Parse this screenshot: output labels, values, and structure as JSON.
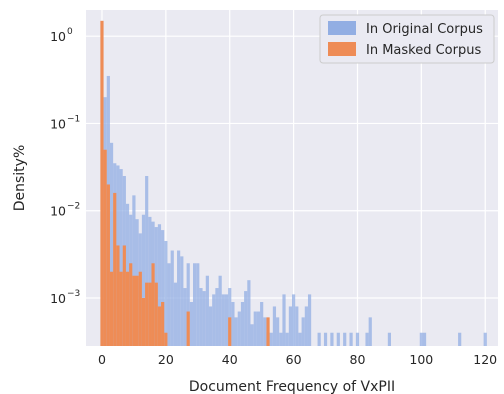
{
  "chart_data": {
    "type": "bar",
    "title": "",
    "xlabel": "Document Frequency of VxPII",
    "ylabel": "Density%",
    "xlim": [
      -5,
      124
    ],
    "ylim_log10": [
      -3.55,
      0.3
    ],
    "yscale": "log",
    "grid": true,
    "legend": "top-right",
    "xticks": [
      {
        "value": 0,
        "label": "0"
      },
      {
        "value": 20,
        "label": "20"
      },
      {
        "value": 40,
        "label": "40"
      },
      {
        "value": 60,
        "label": "60"
      },
      {
        "value": 80,
        "label": "80"
      },
      {
        "value": 100,
        "label": "100"
      },
      {
        "value": 120,
        "label": "120"
      }
    ],
    "yticks": [
      {
        "exp": 0,
        "label": "10",
        "sup": "0"
      },
      {
        "exp": -1,
        "label": "10",
        "sup": "−1"
      },
      {
        "exp": -2,
        "label": "10",
        "sup": "−2"
      },
      {
        "exp": -3,
        "label": "10",
        "sup": "−3"
      }
    ],
    "series": [
      {
        "name": "In Original Corpus",
        "color": "#92aee3",
        "x": [
          1,
          2,
          3,
          4,
          5,
          6,
          7,
          8,
          9,
          10,
          11,
          12,
          13,
          14,
          15,
          16,
          17,
          18,
          19,
          20,
          21,
          22,
          23,
          24,
          25,
          26,
          27,
          28,
          29,
          30,
          31,
          32,
          33,
          34,
          35,
          36,
          37,
          38,
          39,
          40,
          41,
          42,
          43,
          44,
          45,
          46,
          47,
          48,
          49,
          50,
          51,
          52,
          53,
          54,
          55,
          56,
          57,
          58,
          59,
          60,
          61,
          62,
          63,
          64,
          65,
          68,
          70,
          72,
          74,
          76,
          78,
          80,
          83,
          84,
          90,
          100,
          101,
          112,
          120
        ],
        "values": [
          0.2,
          0.35,
          0.06,
          0.035,
          0.033,
          0.03,
          0.025,
          0.012,
          0.009,
          0.015,
          0.008,
          0.0055,
          0.009,
          0.025,
          0.0085,
          0.0075,
          0.0065,
          0.007,
          0.006,
          0.0045,
          0.0025,
          0.0035,
          0.0015,
          0.0035,
          0.003,
          0.0013,
          0.0025,
          0.0009,
          0.0025,
          0.0025,
          0.0013,
          0.0012,
          0.0018,
          0.0008,
          0.0011,
          0.0013,
          0.0018,
          0.0011,
          0.0011,
          0.0013,
          0.0009,
          0.0006,
          0.0007,
          0.0009,
          0.0012,
          0.0016,
          0.0005,
          0.0007,
          0.0007,
          0.0009,
          0.0006,
          0.0004,
          0.0004,
          0.0008,
          0.0006,
          0.0004,
          0.0011,
          0.0004,
          0.0008,
          0.0011,
          0.0008,
          0.0004,
          0.0006,
          0.0008,
          0.0011,
          0.0004,
          0.0004,
          0.0004,
          0.0004,
          0.0004,
          0.0004,
          0.0004,
          0.0004,
          0.0006,
          0.0004,
          0.0004,
          0.0004,
          0.0004,
          0.0004
        ]
      },
      {
        "name": "In Masked Corpus",
        "color": "#ee8c56",
        "x": [
          0,
          1,
          2,
          3,
          4,
          5,
          6,
          7,
          8,
          9,
          10,
          11,
          12,
          13,
          14,
          15,
          16,
          17,
          18,
          19,
          20,
          27,
          40,
          52
        ],
        "values": [
          1.5,
          0.05,
          0.02,
          0.002,
          0.016,
          0.004,
          0.002,
          0.004,
          0.002,
          0.0025,
          0.0018,
          0.0018,
          0.002,
          0.001,
          0.0015,
          0.0015,
          0.0025,
          0.0015,
          0.0008,
          0.0009,
          0.0004,
          0.0007,
          0.0006,
          0.0006
        ]
      }
    ]
  }
}
